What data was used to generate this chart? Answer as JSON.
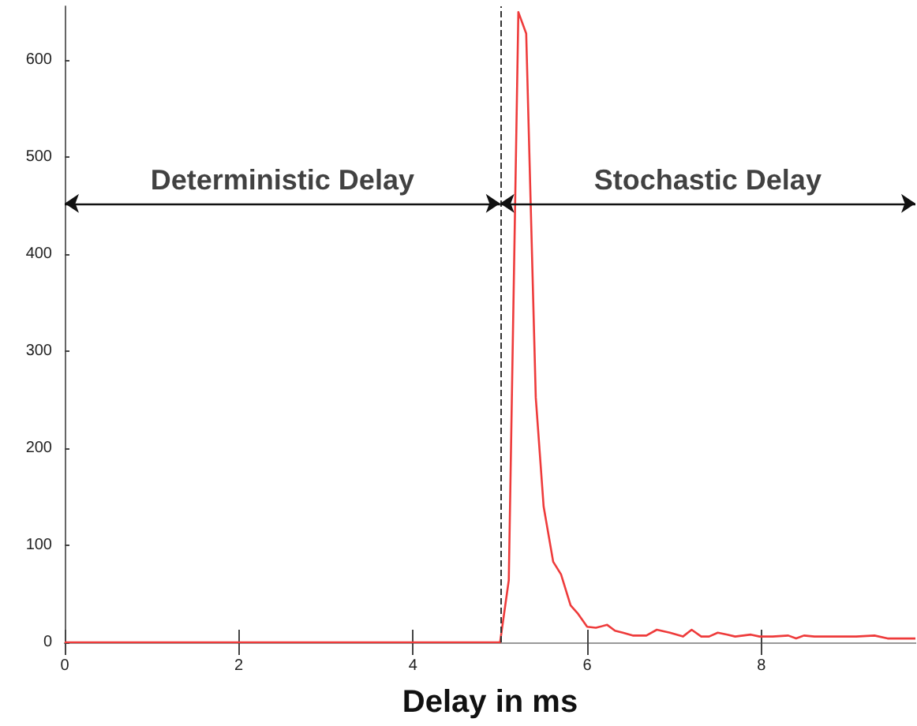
{
  "chart_data": {
    "type": "line",
    "xlabel": "Delay in ms",
    "series": [
      {
        "color": "#ee3b3b",
        "x": [
          0,
          5.0,
          5.1,
          5.21,
          5.3,
          5.41,
          5.5,
          5.61,
          5.7,
          5.81,
          5.89,
          6.0,
          6.1,
          6.23,
          6.32,
          6.41,
          6.53,
          6.68,
          6.8,
          6.95,
          7.1,
          7.2,
          7.31,
          7.4,
          7.5,
          7.61,
          7.7,
          7.88,
          7.98,
          8.13,
          8.31,
          8.4,
          8.49,
          8.61,
          8.85,
          9.09,
          9.3,
          9.45,
          9.77
        ],
        "values": [
          0,
          0,
          64,
          649,
          627,
          252,
          140,
          83,
          70,
          38,
          30,
          16,
          15,
          18,
          12,
          10,
          7,
          7,
          13,
          10,
          6,
          13,
          6,
          6,
          10,
          8,
          6,
          8,
          6,
          6,
          7,
          4,
          7,
          6,
          6,
          6,
          7,
          4,
          4
        ]
      }
    ],
    "xlim": [
      0,
      9.77
    ],
    "xticks": [
      0,
      2,
      4,
      6,
      8
    ],
    "ylim": [
      0,
      655
    ],
    "yticks": [
      0,
      100,
      200,
      300,
      400,
      500,
      600
    ],
    "ref_lines": [
      {
        "axis": "x",
        "value": 5,
        "line_style": "dashed",
        "color": "#333333"
      }
    ],
    "annotations": [
      "Deterministic Delay",
      "Stochastic Delay"
    ],
    "grid": false,
    "marker": "none",
    "line_style": "solid"
  }
}
